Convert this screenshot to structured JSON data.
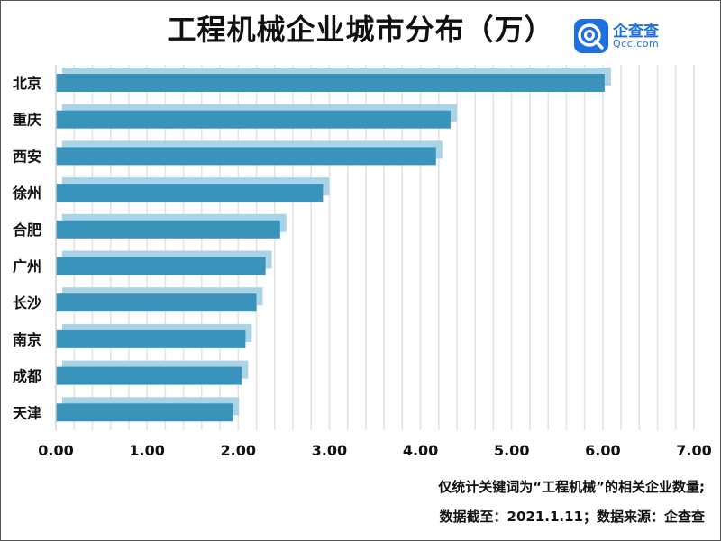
{
  "title": "工程机械企业城市分布（万）",
  "logo": {
    "name": "企查查",
    "domain": "Qcc.com"
  },
  "footnotes": [
    "仅统计关键词为“工程机械”的相关企业数量;",
    "数据截至：2021.1.11；数据来源：企查查"
  ],
  "colors": {
    "bar": "#3a93ba",
    "shadow": "#a9d3e6",
    "grid": "#e3e3e3",
    "logo": "#1e6fe0"
  },
  "chart_data": {
    "type": "bar",
    "orientation": "horizontal",
    "categories": [
      "北京",
      "重庆",
      "西安",
      "徐州",
      "合肥",
      "广州",
      "长沙",
      "南京",
      "成都",
      "天津"
    ],
    "values": [
      6.02,
      4.33,
      4.17,
      2.93,
      2.46,
      2.3,
      2.2,
      2.08,
      2.04,
      1.94
    ],
    "xlim": [
      0,
      7
    ],
    "xticks": [
      "0.00",
      "1.00",
      "2.00",
      "3.00",
      "4.00",
      "5.00",
      "6.00",
      "7.00"
    ],
    "grid": true
  }
}
